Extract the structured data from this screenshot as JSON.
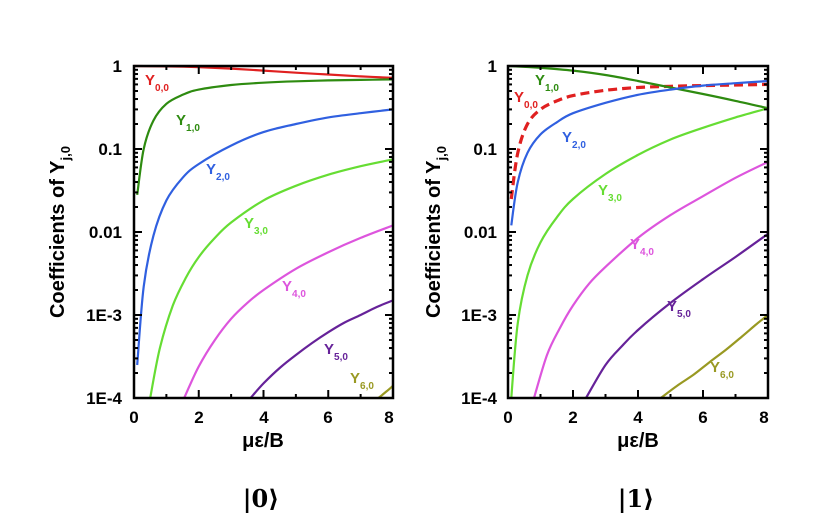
{
  "chart_data": [
    {
      "type": "line",
      "panel_label": "|0⟩",
      "xlabel": "με/B",
      "ylabel": "Coefficients of Y",
      "ylabel_sub": "j,0",
      "yscale": "log",
      "xlim": [
        0,
        8
      ],
      "ylim": [
        0.0001,
        1
      ],
      "xticks": [
        0,
        2,
        4,
        6,
        8
      ],
      "xtick_labels": [
        "0",
        "2",
        "4",
        "6",
        "8"
      ],
      "yticks": [
        1,
        0.1,
        0.01,
        0.001,
        0.0001
      ],
      "ytick_labels": [
        "1",
        "0.1",
        "0.01",
        "1E-3",
        "1E-4"
      ],
      "series": [
        {
          "name": "Y",
          "sub": "0,0",
          "color": "#e02020",
          "dash": false,
          "x": [
            0,
            1,
            2,
            3,
            4,
            5,
            6,
            7,
            8
          ],
          "y": [
            1,
            0.99,
            0.97,
            0.93,
            0.88,
            0.83,
            0.79,
            0.75,
            0.72
          ]
        },
        {
          "name": "Y",
          "sub": "1,0",
          "color": "#2e8b10",
          "dash": false,
          "x": [
            0.1,
            0.3,
            0.6,
            1,
            1.5,
            2,
            3,
            4,
            5,
            6,
            7,
            8
          ],
          "y": [
            0.028,
            0.1,
            0.22,
            0.35,
            0.45,
            0.52,
            0.59,
            0.63,
            0.655,
            0.67,
            0.68,
            0.69
          ]
        },
        {
          "name": "Y",
          "sub": "2,0",
          "color": "#3060e0",
          "dash": false,
          "x": [
            0.1,
            0.3,
            0.6,
            1,
            1.5,
            2,
            3,
            4,
            5,
            6,
            7,
            8
          ],
          "y": [
            0.00025,
            0.0022,
            0.009,
            0.024,
            0.045,
            0.066,
            0.11,
            0.16,
            0.2,
            0.24,
            0.27,
            0.3
          ]
        },
        {
          "name": "Y",
          "sub": "3,0",
          "color": "#66dd33",
          "dash": false,
          "x": [
            0.5,
            0.8,
            1.2,
            1.6,
            2,
            2.5,
            3,
            4,
            5,
            6,
            7,
            8
          ],
          "y": [
            0.0001,
            0.0004,
            0.0013,
            0.0028,
            0.005,
            0.0085,
            0.013,
            0.024,
            0.036,
            0.049,
            0.062,
            0.075
          ]
        },
        {
          "name": "Y",
          "sub": "4,0",
          "color": "#dd55dd",
          "dash": false,
          "x": [
            1.55,
            2,
            2.5,
            3,
            3.5,
            4,
            5,
            6,
            7,
            8
          ],
          "y": [
            0.0001,
            0.00024,
            0.0005,
            0.0009,
            0.0014,
            0.002,
            0.0036,
            0.0057,
            0.0085,
            0.012
          ]
        },
        {
          "name": "Y",
          "sub": "5,0",
          "color": "#662299",
          "dash": false,
          "x": [
            3.6,
            4,
            4.5,
            5,
            5.5,
            6,
            6.5,
            7,
            7.5,
            8
          ],
          "y": [
            0.0001,
            0.00015,
            0.00023,
            0.00033,
            0.00046,
            0.00062,
            0.00081,
            0.001,
            0.00125,
            0.0015
          ]
        },
        {
          "name": "Y",
          "sub": "6,0",
          "color": "#999922",
          "dash": false,
          "x": [
            7.55,
            7.8,
            8
          ],
          "y": [
            0.0001,
            0.00012,
            0.00014
          ]
        }
      ]
    },
    {
      "type": "line",
      "panel_label": "|1⟩",
      "xlabel": "με/B",
      "ylabel": "Coefficients of Y",
      "ylabel_sub": "j,0",
      "yscale": "log",
      "xlim": [
        0,
        8
      ],
      "ylim": [
        0.0001,
        1
      ],
      "xticks": [
        0,
        2,
        4,
        6,
        8
      ],
      "xtick_labels": [
        "0",
        "2",
        "4",
        "6",
        "8"
      ],
      "yticks": [
        1,
        0.1,
        0.01,
        0.001,
        0.0001
      ],
      "ytick_labels": [
        "1",
        "0.1",
        "0.01",
        "1E-3",
        "1E-4"
      ],
      "series": [
        {
          "name": "Y",
          "sub": "0,0",
          "color": "#e02020",
          "dash": true,
          "x": [
            0.1,
            0.3,
            0.6,
            1,
            1.5,
            2,
            3,
            4,
            5,
            6,
            7,
            8
          ],
          "y": [
            0.025,
            0.09,
            0.2,
            0.3,
            0.38,
            0.44,
            0.51,
            0.55,
            0.57,
            0.58,
            0.59,
            0.6
          ]
        },
        {
          "name": "Y",
          "sub": "1,0",
          "color": "#2e8b10",
          "dash": false,
          "x": [
            0,
            1,
            2,
            3,
            4,
            5,
            6,
            7,
            8
          ],
          "y": [
            1,
            0.95,
            0.88,
            0.78,
            0.66,
            0.55,
            0.46,
            0.38,
            0.31
          ]
        },
        {
          "name": "Y",
          "sub": "2,0",
          "color": "#3060e0",
          "dash": false,
          "x": [
            0.1,
            0.3,
            0.6,
            1,
            1.5,
            2,
            3,
            4,
            5,
            6,
            7,
            8
          ],
          "y": [
            0.012,
            0.04,
            0.09,
            0.15,
            0.21,
            0.27,
            0.36,
            0.45,
            0.52,
            0.58,
            0.62,
            0.66
          ]
        },
        {
          "name": "Y",
          "sub": "3,0",
          "color": "#66dd33",
          "dash": false,
          "x": [
            0.1,
            0.3,
            0.6,
            1,
            1.5,
            2,
            3,
            4,
            5,
            6,
            7,
            8
          ],
          "y": [
            0.0001,
            0.0008,
            0.003,
            0.0075,
            0.015,
            0.025,
            0.05,
            0.085,
            0.13,
            0.18,
            0.24,
            0.31
          ]
        },
        {
          "name": "Y",
          "sub": "4,0",
          "color": "#dd55dd",
          "dash": false,
          "x": [
            0.8,
            1.2,
            1.6,
            2,
            2.5,
            3,
            4,
            5,
            6,
            7,
            8
          ],
          "y": [
            0.0001,
            0.00033,
            0.0007,
            0.0013,
            0.0024,
            0.0038,
            0.0085,
            0.016,
            0.027,
            0.045,
            0.07
          ]
        },
        {
          "name": "Y",
          "sub": "5,0",
          "color": "#662299",
          "dash": false,
          "x": [
            2.4,
            3,
            3.5,
            4,
            5,
            6,
            7,
            8
          ],
          "y": [
            0.0001,
            0.00025,
            0.00042,
            0.00066,
            0.0014,
            0.0027,
            0.005,
            0.0095
          ]
        },
        {
          "name": "Y",
          "sub": "6,0",
          "color": "#999922",
          "dash": false,
          "x": [
            4.7,
            5.2,
            5.7,
            6.2,
            6.7,
            7.2,
            7.6,
            8
          ],
          "y": [
            0.0001,
            0.00014,
            0.00019,
            0.00027,
            0.00038,
            0.00055,
            0.00075,
            0.001
          ]
        }
      ]
    }
  ]
}
